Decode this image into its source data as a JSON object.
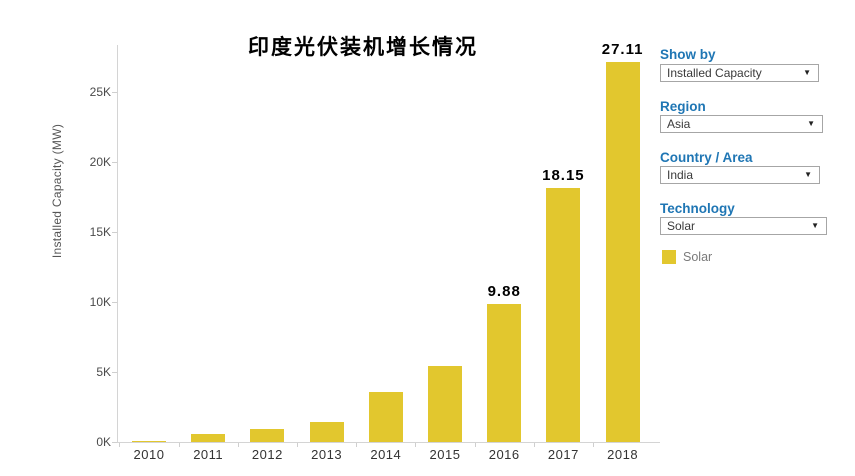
{
  "chart_data": {
    "type": "bar",
    "title": "印度光伏装机增长情况",
    "ylabel": "Installed Capacity (MW)",
    "unit": "thousand MW (K)",
    "categories": [
      "2010",
      "2011",
      "2012",
      "2013",
      "2014",
      "2015",
      "2016",
      "2017",
      "2018"
    ],
    "values": [
      0.1,
      0.57,
      0.95,
      1.43,
      3.57,
      5.45,
      9.88,
      18.15,
      27.11
    ],
    "bar_labels": [
      "",
      "",
      "",
      "",
      "",
      "",
      "9.88",
      "18.15",
      "27.11"
    ],
    "y_ticks": [
      "0K",
      "5K",
      "10K",
      "15K",
      "20K",
      "25K"
    ],
    "y_tick_values": [
      0,
      5,
      10,
      15,
      20,
      25
    ],
    "ylim": [
      0,
      28.4
    ],
    "grid": false,
    "legend_position": "right",
    "series": [
      {
        "name": "Solar",
        "color": "#e2c72e"
      }
    ]
  },
  "panel": {
    "filters": [
      {
        "label": "Show by",
        "value": "Installed Capacity"
      },
      {
        "label": "Region",
        "value": "Asia"
      },
      {
        "label": "Country / Area",
        "value": "India"
      },
      {
        "label": "Technology",
        "value": "Solar"
      }
    ],
    "legend": {
      "label": "Solar",
      "swatch_color": "#e2c72e"
    }
  },
  "colors": {
    "bar_yellow": "#e2c72e",
    "label_blue": "#1f76b4",
    "axis_line": "#d4d4d4",
    "axis_text": "#4a4a4a",
    "legend_text": "#7a7a7a"
  }
}
